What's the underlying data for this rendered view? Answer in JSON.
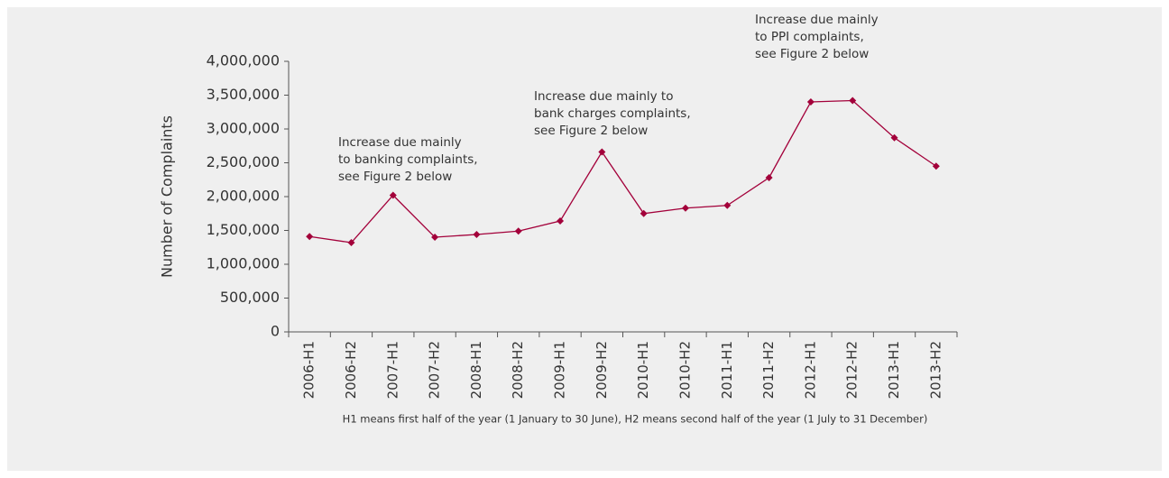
{
  "chart_data": {
    "type": "line",
    "y_label": "Number of Complaints",
    "categories": [
      "2006-H1",
      "2006-H2",
      "2007-H1",
      "2007-H2",
      "2008-H1",
      "2008-H2",
      "2009-H1",
      "2009-H2",
      "2010-H1",
      "2010-H2",
      "2011-H1",
      "2011-H2",
      "2012-H1",
      "2012-H2",
      "2013-H1",
      "2013-H2"
    ],
    "series": [
      {
        "name": "Complaints",
        "color": "#a3003a",
        "values": [
          1410000,
          1320000,
          2020000,
          1400000,
          1440000,
          1490000,
          1640000,
          2660000,
          1750000,
          1830000,
          1870000,
          2280000,
          3400000,
          3420000,
          2870000,
          2450000
        ]
      }
    ],
    "ylim": [
      0,
      4000000
    ],
    "yticks": [
      0,
      {
        "value": 500000,
        "label": "500,000"
      },
      {
        "value": 1000000,
        "label": "1,000,000"
      },
      {
        "value": 1500000,
        "label": "1,500,000"
      },
      {
        "value": 2000000,
        "label": "2,000,000"
      },
      {
        "value": 2500000,
        "label": "2,500,000"
      },
      {
        "value": 3000000,
        "label": "3,000,000"
      },
      {
        "value": 3500000,
        "label": "3,500,000"
      },
      {
        "value": 4000000,
        "label": "4,000,000"
      }
    ],
    "grid": false,
    "annotations": [
      {
        "lines": [
          "Increase due mainly",
          "to banking complaints,",
          "see Figure 2 below"
        ]
      },
      {
        "lines": [
          "Increase due mainly to",
          "bank charges complaints,",
          "see Figure 2 below"
        ]
      },
      {
        "lines": [
          "Increase due mainly",
          "to PPI complaints,",
          "see Figure 2 below"
        ]
      }
    ],
    "note": "H1 means first half of the year (1 January to 30 June), H2 means second half of the year (1 July to 31 December)"
  }
}
